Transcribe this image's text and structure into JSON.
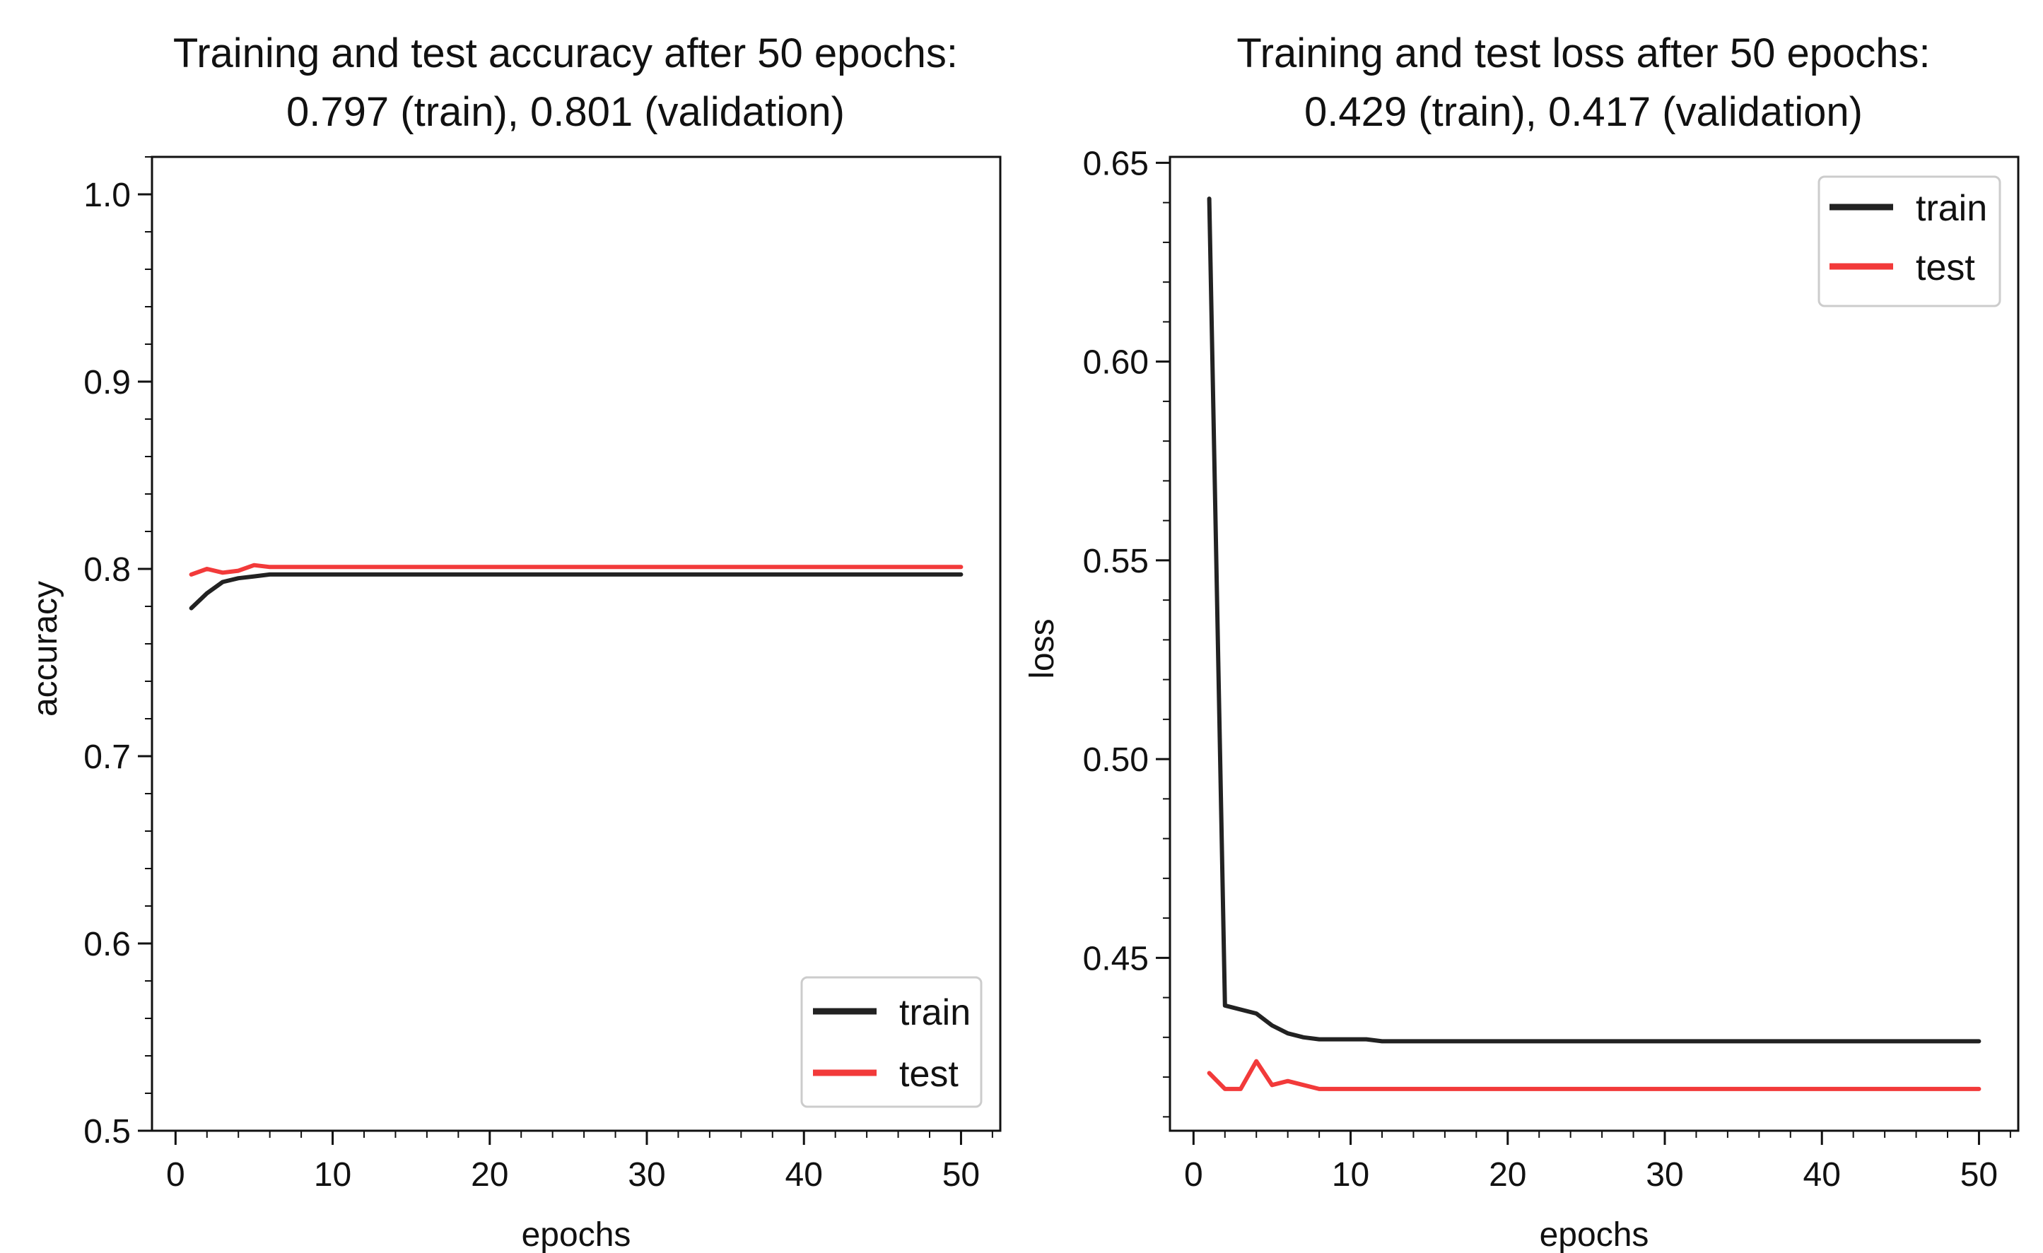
{
  "colors": {
    "train": "#222222",
    "test": "#f23a3a",
    "axis": "#111111",
    "background": "#ffffff"
  },
  "chart_data": [
    {
      "type": "line",
      "title": "Training and test accuracy after 50 epochs:",
      "subtitle": "0.797 (train), 0.801 (validation)",
      "xlabel": "epochs",
      "ylabel": "accuracy",
      "xlim": [
        -1.5,
        52.5
      ],
      "ylim": [
        0.5,
        1.02
      ],
      "xticks": [
        0,
        10,
        20,
        30,
        40,
        50
      ],
      "xtick_labels": [
        "0",
        "10",
        "20",
        "30",
        "40",
        "50"
      ],
      "yticks": [
        0.5,
        0.6,
        0.7,
        0.8,
        0.9,
        1.0
      ],
      "ytick_labels": [
        "0.5",
        "0.6",
        "0.7",
        "0.8",
        "0.9",
        "1.0"
      ],
      "grid": false,
      "legend_position": "lower-right",
      "series": [
        {
          "name": "train",
          "color": "#222222",
          "x": [
            1,
            2,
            3,
            4,
            5,
            6,
            7,
            8,
            9,
            10,
            11,
            12,
            13,
            14,
            15,
            16,
            17,
            18,
            19,
            20,
            21,
            22,
            23,
            24,
            25,
            26,
            27,
            28,
            29,
            30,
            31,
            32,
            33,
            34,
            35,
            36,
            37,
            38,
            39,
            40,
            41,
            42,
            43,
            44,
            45,
            46,
            47,
            48,
            49,
            50
          ],
          "values": [
            0.779,
            0.787,
            0.793,
            0.795,
            0.796,
            0.797,
            0.797,
            0.797,
            0.797,
            0.797,
            0.797,
            0.797,
            0.797,
            0.797,
            0.797,
            0.797,
            0.797,
            0.797,
            0.797,
            0.797,
            0.797,
            0.797,
            0.797,
            0.797,
            0.797,
            0.797,
            0.797,
            0.797,
            0.797,
            0.797,
            0.797,
            0.797,
            0.797,
            0.797,
            0.797,
            0.797,
            0.797,
            0.797,
            0.797,
            0.797,
            0.797,
            0.797,
            0.797,
            0.797,
            0.797,
            0.797,
            0.797,
            0.797,
            0.797,
            0.797
          ]
        },
        {
          "name": "test",
          "color": "#f23a3a",
          "x": [
            1,
            2,
            3,
            4,
            5,
            6,
            7,
            8,
            9,
            10,
            11,
            12,
            13,
            14,
            15,
            16,
            17,
            18,
            19,
            20,
            21,
            22,
            23,
            24,
            25,
            26,
            27,
            28,
            29,
            30,
            31,
            32,
            33,
            34,
            35,
            36,
            37,
            38,
            39,
            40,
            41,
            42,
            43,
            44,
            45,
            46,
            47,
            48,
            49,
            50
          ],
          "values": [
            0.797,
            0.8,
            0.798,
            0.799,
            0.802,
            0.801,
            0.801,
            0.801,
            0.801,
            0.801,
            0.801,
            0.801,
            0.801,
            0.801,
            0.801,
            0.801,
            0.801,
            0.801,
            0.801,
            0.801,
            0.801,
            0.801,
            0.801,
            0.801,
            0.801,
            0.801,
            0.801,
            0.801,
            0.801,
            0.801,
            0.801,
            0.801,
            0.801,
            0.801,
            0.801,
            0.801,
            0.801,
            0.801,
            0.801,
            0.801,
            0.801,
            0.801,
            0.801,
            0.801,
            0.801,
            0.801,
            0.801,
            0.801,
            0.801,
            0.801
          ]
        }
      ]
    },
    {
      "type": "line",
      "title": "Training and test loss after 50 epochs:",
      "subtitle": "0.429 (train), 0.417 (validation)",
      "xlabel": "epochs",
      "ylabel": "loss",
      "xlim": [
        -1.5,
        52.5
      ],
      "ylim": [
        0.4065,
        0.6515
      ],
      "xticks": [
        0,
        10,
        20,
        30,
        40,
        50
      ],
      "xtick_labels": [
        "0",
        "10",
        "20",
        "30",
        "40",
        "50"
      ],
      "yticks": [
        0.45,
        0.5,
        0.55,
        0.6,
        0.65
      ],
      "ytick_labels": [
        "0.45",
        "0.50",
        "0.55",
        "0.60",
        "0.65"
      ],
      "grid": false,
      "legend_position": "upper-right",
      "series": [
        {
          "name": "train",
          "color": "#222222",
          "x": [
            1,
            2,
            3,
            4,
            5,
            6,
            7,
            8,
            9,
            10,
            11,
            12,
            13,
            14,
            15,
            16,
            17,
            18,
            19,
            20,
            21,
            22,
            23,
            24,
            25,
            26,
            27,
            28,
            29,
            30,
            31,
            32,
            33,
            34,
            35,
            36,
            37,
            38,
            39,
            40,
            41,
            42,
            43,
            44,
            45,
            46,
            47,
            48,
            49,
            50
          ],
          "values": [
            0.641,
            0.438,
            0.437,
            0.436,
            0.433,
            0.431,
            0.43,
            0.4295,
            0.4295,
            0.4295,
            0.4295,
            0.429,
            0.429,
            0.429,
            0.429,
            0.429,
            0.429,
            0.429,
            0.429,
            0.429,
            0.429,
            0.429,
            0.429,
            0.429,
            0.429,
            0.429,
            0.429,
            0.429,
            0.429,
            0.429,
            0.429,
            0.429,
            0.429,
            0.429,
            0.429,
            0.429,
            0.429,
            0.429,
            0.429,
            0.429,
            0.429,
            0.429,
            0.429,
            0.429,
            0.429,
            0.429,
            0.429,
            0.429,
            0.429,
            0.429
          ]
        },
        {
          "name": "test",
          "color": "#f23a3a",
          "x": [
            1,
            2,
            3,
            4,
            5,
            6,
            7,
            8,
            9,
            10,
            11,
            12,
            13,
            14,
            15,
            16,
            17,
            18,
            19,
            20,
            21,
            22,
            23,
            24,
            25,
            26,
            27,
            28,
            29,
            30,
            31,
            32,
            33,
            34,
            35,
            36,
            37,
            38,
            39,
            40,
            41,
            42,
            43,
            44,
            45,
            46,
            47,
            48,
            49,
            50
          ],
          "values": [
            0.421,
            0.417,
            0.417,
            0.424,
            0.418,
            0.419,
            0.418,
            0.417,
            0.417,
            0.417,
            0.417,
            0.417,
            0.417,
            0.417,
            0.417,
            0.417,
            0.417,
            0.417,
            0.417,
            0.417,
            0.417,
            0.417,
            0.417,
            0.417,
            0.417,
            0.417,
            0.417,
            0.417,
            0.417,
            0.417,
            0.417,
            0.417,
            0.417,
            0.417,
            0.417,
            0.417,
            0.417,
            0.417,
            0.417,
            0.417,
            0.417,
            0.417,
            0.417,
            0.417,
            0.417,
            0.417,
            0.417,
            0.417,
            0.417,
            0.417
          ]
        }
      ]
    }
  ]
}
